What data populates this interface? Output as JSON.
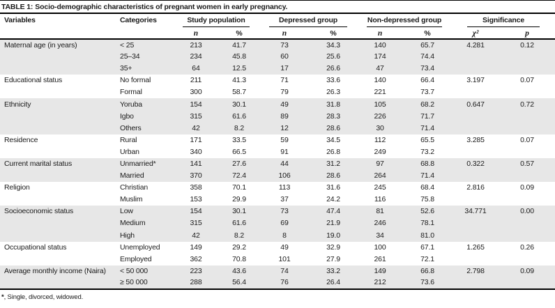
{
  "table": {
    "title_label": "TABLE 1:",
    "title_text": "Socio-demographic characteristics of pregnant women in early pregnancy.",
    "header": {
      "variables": "Variables",
      "categories": "Categories",
      "groups": [
        {
          "label": "Study population",
          "n": "n",
          "pct": "%"
        },
        {
          "label": "Depressed group",
          "n": "n",
          "pct": "%"
        },
        {
          "label": "Non-depressed group",
          "n": "n",
          "pct": "%"
        },
        {
          "label": "Significance",
          "n": "χ²",
          "pct": "p"
        }
      ]
    },
    "groups": [
      {
        "variable": "Maternal age (in years)",
        "chi2": "4.281",
        "p": "0.12",
        "rows": [
          {
            "category": "< 25",
            "values": [
              "213",
              "41.7",
              "73",
              "34.3",
              "140",
              "65.7"
            ]
          },
          {
            "category": "25–34",
            "values": [
              "234",
              "45.8",
              "60",
              "25.6",
              "174",
              "74.4"
            ]
          },
          {
            "category": "35+",
            "values": [
              "64",
              "12.5",
              "17",
              "26.6",
              "47",
              "73.4"
            ]
          }
        ]
      },
      {
        "variable": "Educational status",
        "chi2": "3.197",
        "p": "0.07",
        "rows": [
          {
            "category": "No formal",
            "values": [
              "211",
              "41.3",
              "71",
              "33.6",
              "140",
              "66.4"
            ]
          },
          {
            "category": "Formal",
            "values": [
              "300",
              "58.7",
              "79",
              "26.3",
              "221",
              "73.7"
            ]
          }
        ]
      },
      {
        "variable": "Ethnicity",
        "chi2": "0.647",
        "p": "0.72",
        "rows": [
          {
            "category": "Yoruba",
            "values": [
              "154",
              "30.1",
              "49",
              "31.8",
              "105",
              "68.2"
            ]
          },
          {
            "category": "Igbo",
            "values": [
              "315",
              "61.6",
              "89",
              "28.3",
              "226",
              "71.7"
            ]
          },
          {
            "category": "Others",
            "values": [
              "42",
              "8.2",
              "12",
              "28.6",
              "30",
              "71.4"
            ]
          }
        ]
      },
      {
        "variable": "Residence",
        "chi2": "3.285",
        "p": "0.07",
        "rows": [
          {
            "category": "Rural",
            "values": [
              "171",
              "33.5",
              "59",
              "34.5",
              "112",
              "65.5"
            ]
          },
          {
            "category": "Urban",
            "values": [
              "340",
              "66.5",
              "91",
              "26.8",
              "249",
              "73.2"
            ]
          }
        ]
      },
      {
        "variable": "Current marital status",
        "chi2": "0.322",
        "p": "0.57",
        "rows": [
          {
            "category": "Unmarried*",
            "values": [
              "141",
              "27.6",
              "44",
              "31.2",
              "97",
              "68.8"
            ]
          },
          {
            "category": "Married",
            "values": [
              "370",
              "72.4",
              "106",
              "28.6",
              "264",
              "71.4"
            ]
          }
        ]
      },
      {
        "variable": "Religion",
        "chi2": "2.816",
        "p": "0.09",
        "rows": [
          {
            "category": "Christian",
            "values": [
              "358",
              "70.1",
              "113",
              "31.6",
              "245",
              "68.4"
            ]
          },
          {
            "category": "Muslim",
            "values": [
              "153",
              "29.9",
              "37",
              "24.2",
              "116",
              "75.8"
            ]
          }
        ]
      },
      {
        "variable": "Socioeconomic status",
        "chi2": "34.771",
        "p": "0.00",
        "rows": [
          {
            "category": "Low",
            "values": [
              "154",
              "30.1",
              "73",
              "47.4",
              "81",
              "52.6"
            ]
          },
          {
            "category": "Medium",
            "values": [
              "315",
              "61.6",
              "69",
              "21.9",
              "246",
              "78.1"
            ]
          },
          {
            "category": "High",
            "values": [
              "42",
              "8.2",
              "8",
              "19.0",
              "34",
              "81.0"
            ]
          }
        ]
      },
      {
        "variable": "Occupational status",
        "chi2": "1.265",
        "p": "0.26",
        "rows": [
          {
            "category": "Unemployed",
            "values": [
              "149",
              "29.2",
              "49",
              "32.9",
              "100",
              "67.1"
            ]
          },
          {
            "category": "Employed",
            "values": [
              "362",
              "70.8",
              "101",
              "27.9",
              "261",
              "72.1"
            ]
          }
        ]
      },
      {
        "variable": "Average monthly income (Naira)",
        "chi2": "2.798",
        "p": "0.09",
        "rows": [
          {
            "category": "< 50 000",
            "values": [
              "223",
              "43.6",
              "74",
              "33.2",
              "149",
              "66.8"
            ]
          },
          {
            "category": "≥ 50 000",
            "values": [
              "288",
              "56.4",
              "76",
              "26.4",
              "212",
              "73.6"
            ]
          }
        ]
      }
    ],
    "footnote_marker": "*",
    "footnote_text": ", Single, divorced, widowed.",
    "cell_names": [
      "variable-cell",
      "category-cell",
      "study-n-cell",
      "study-pct-cell",
      "depressed-n-cell",
      "depressed-pct-cell",
      "nondepressed-n-cell",
      "nondepressed-pct-cell",
      "chi2-cell",
      "p-cell"
    ],
    "colors": {
      "shaded_row": "#e7e7e7",
      "rule": "#000000"
    }
  }
}
